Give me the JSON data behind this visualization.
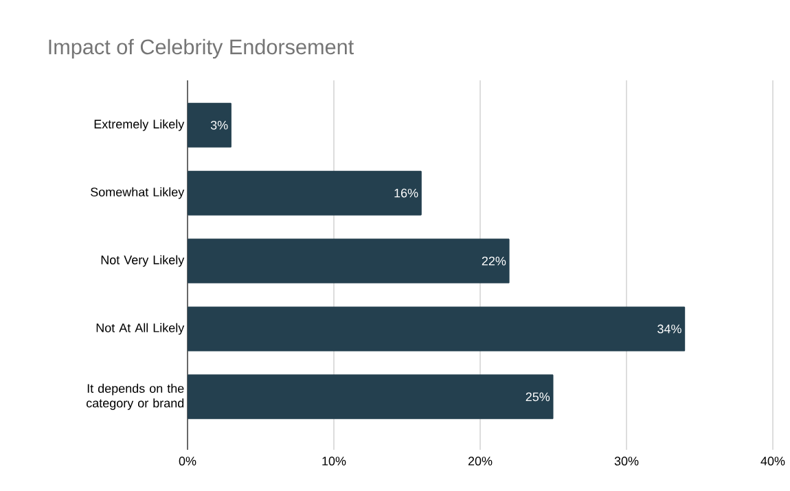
{
  "chart_data": {
    "type": "bar",
    "orientation": "horizontal",
    "title": "Impact of Celebrity Endorsement",
    "categories": [
      "Extremely Likely",
      "Somewhat Likley",
      "Not Very Likely",
      "Not At All Likely",
      "It depends on the category or brand"
    ],
    "values": [
      3,
      16,
      22,
      34,
      25
    ],
    "value_labels": [
      "3%",
      "16%",
      "22%",
      "34%",
      "25%"
    ],
    "color": "#24404f",
    "xlim": [
      0,
      40
    ],
    "xticks": [
      {
        "value": 0,
        "label": "0%"
      },
      {
        "value": 10,
        "label": "10%"
      },
      {
        "value": 20,
        "label": "20%"
      },
      {
        "value": 30,
        "label": "30%"
      },
      {
        "value": 40,
        "label": "40%"
      }
    ],
    "grid": "x"
  }
}
